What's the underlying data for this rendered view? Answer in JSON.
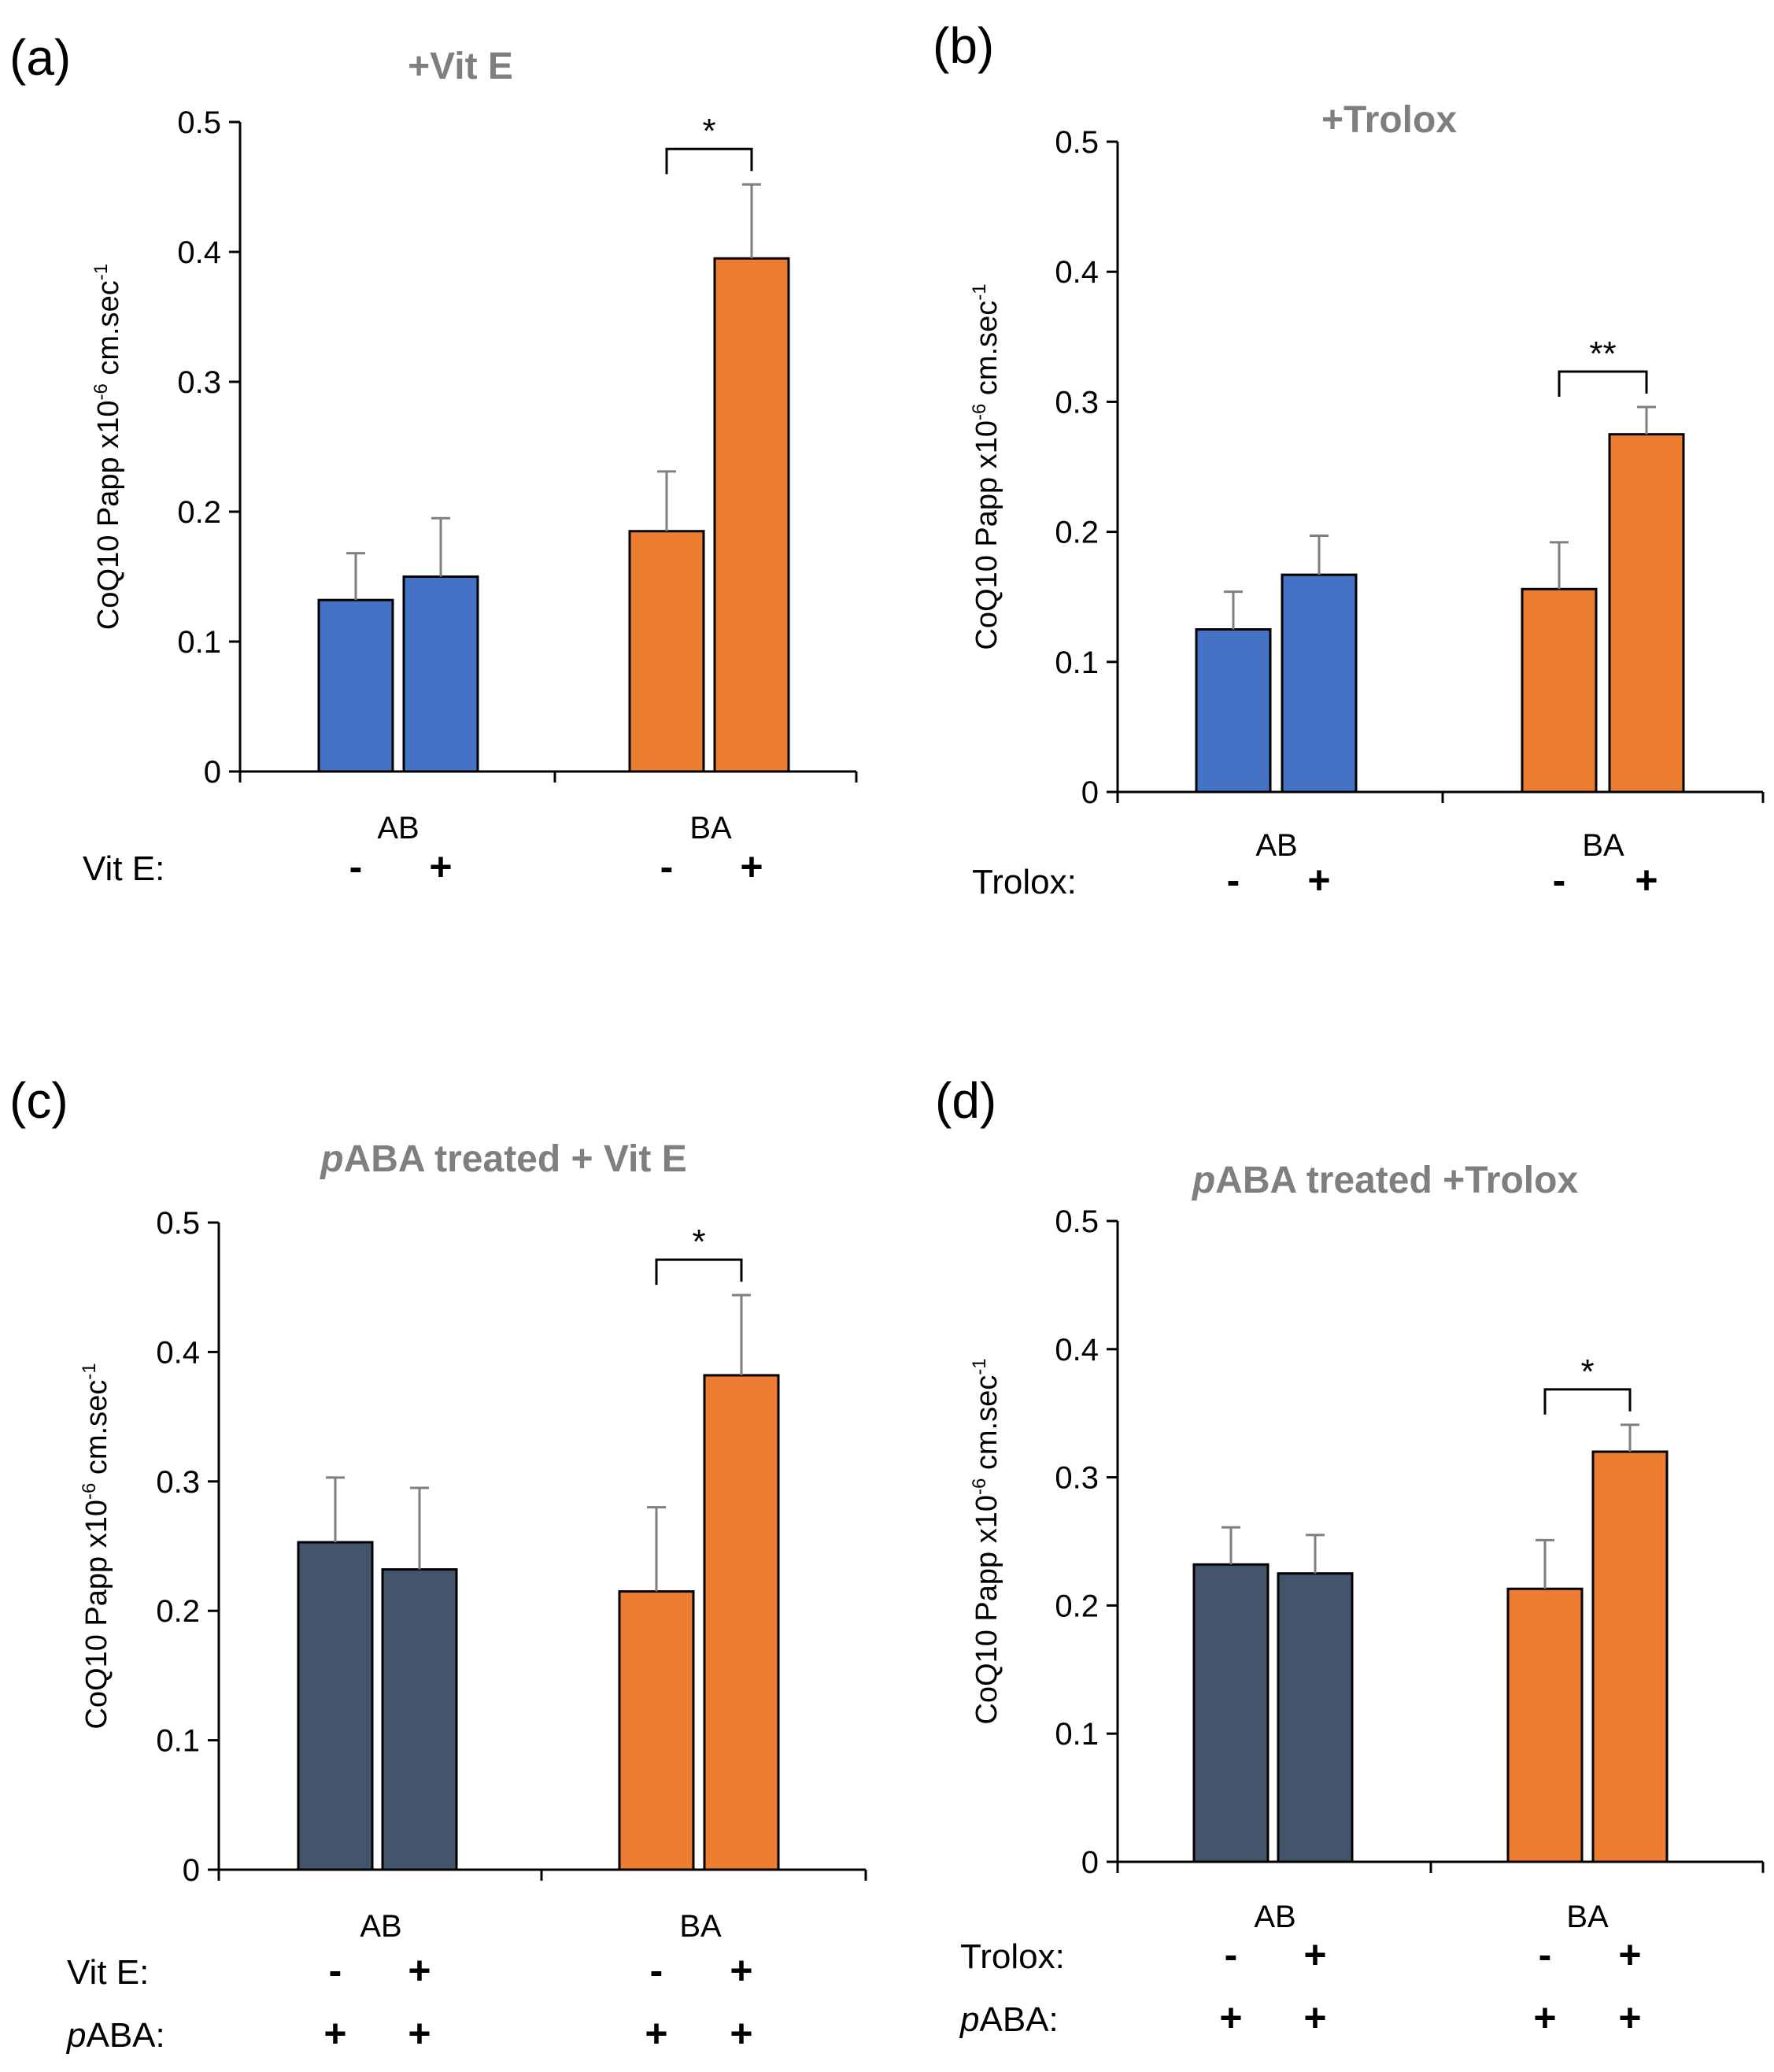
{
  "figure": {
    "type": "multi-panel bar chart",
    "panel_count": 4
  },
  "chart_data": [
    {
      "panel_label": "(a)",
      "type": "bar",
      "title": "+Vit E",
      "title_parts": [
        {
          "text": "+Vit E",
          "italic": false
        }
      ],
      "ylabel": "CoQ10 Papp x10",
      "ylabel_exp": "-6",
      "ylabel_unit": " cm.sec",
      "ylabel_unit_exp": "-1",
      "ylim": [
        0,
        0.5
      ],
      "yticks": [
        0,
        0.1,
        0.2,
        0.3,
        0.4,
        0.5
      ],
      "ytick_labels": [
        "0",
        "0.1",
        "0.2",
        "0.3",
        "0.4",
        "0.5"
      ],
      "categories": [
        "AB",
        "BA"
      ],
      "bars": [
        {
          "group": "AB",
          "treatment": "-",
          "value": 0.132,
          "error": 0.036,
          "color": "#4472C4"
        },
        {
          "group": "AB",
          "treatment": "+",
          "value": 0.15,
          "error": 0.045,
          "color": "#4472C4"
        },
        {
          "group": "BA",
          "treatment": "-",
          "value": 0.185,
          "error": 0.046,
          "color": "#ED7D31"
        },
        {
          "group": "BA",
          "treatment": "+",
          "value": 0.395,
          "error": 0.057,
          "color": "#ED7D31"
        }
      ],
      "significance": [
        {
          "group": "BA",
          "label": "*"
        }
      ],
      "condition_rows": [
        {
          "label": "Vit E:",
          "values": [
            "-",
            "+",
            "-",
            "+"
          ],
          "label_italic_prefix": ""
        }
      ]
    },
    {
      "panel_label": "(b)",
      "type": "bar",
      "title": "+Trolox",
      "title_parts": [
        {
          "text": "+Trolox",
          "italic": false
        }
      ],
      "ylabel": "CoQ10 Papp x10",
      "ylabel_exp": "-6",
      "ylabel_unit": " cm.sec",
      "ylabel_unit_exp": "-1",
      "ylim": [
        0,
        0.5
      ],
      "yticks": [
        0,
        0.1,
        0.2,
        0.3,
        0.4,
        0.5
      ],
      "ytick_labels": [
        "0",
        "0.1",
        "0.2",
        "0.3",
        "0.4",
        "0.5"
      ],
      "categories": [
        "AB",
        "BA"
      ],
      "bars": [
        {
          "group": "AB",
          "treatment": "-",
          "value": 0.125,
          "error": 0.029,
          "color": "#4472C4"
        },
        {
          "group": "AB",
          "treatment": "+",
          "value": 0.167,
          "error": 0.03,
          "color": "#4472C4"
        },
        {
          "group": "BA",
          "treatment": "-",
          "value": 0.156,
          "error": 0.036,
          "color": "#ED7D31"
        },
        {
          "group": "BA",
          "treatment": "+",
          "value": 0.275,
          "error": 0.021,
          "color": "#ED7D31"
        }
      ],
      "significance": [
        {
          "group": "BA",
          "label": "**"
        }
      ],
      "condition_rows": [
        {
          "label": "Trolox:",
          "values": [
            "-",
            "+",
            "-",
            "+"
          ],
          "label_italic_prefix": ""
        }
      ]
    },
    {
      "panel_label": "(c)",
      "type": "bar",
      "title": "pABA treated + Vit E",
      "title_parts": [
        {
          "text": "p",
          "italic": true
        },
        {
          "text": "ABA treated + Vit E",
          "italic": false
        }
      ],
      "ylabel": "CoQ10 Papp x10",
      "ylabel_exp": "-6",
      "ylabel_unit": " cm.sec",
      "ylabel_unit_exp": "-1",
      "ylim": [
        0,
        0.5
      ],
      "yticks": [
        0,
        0.1,
        0.2,
        0.3,
        0.4,
        0.5
      ],
      "ytick_labels": [
        "0",
        "0.1",
        "0.2",
        "0.3",
        "0.4",
        "0.5"
      ],
      "categories": [
        "AB",
        "BA"
      ],
      "bars": [
        {
          "group": "AB",
          "treatment": "-",
          "value": 0.253,
          "error": 0.05,
          "color": "#44546A"
        },
        {
          "group": "AB",
          "treatment": "+",
          "value": 0.232,
          "error": 0.063,
          "color": "#44546A"
        },
        {
          "group": "BA",
          "treatment": "-",
          "value": 0.215,
          "error": 0.065,
          "color": "#ED7D31"
        },
        {
          "group": "BA",
          "treatment": "+",
          "value": 0.382,
          "error": 0.062,
          "color": "#ED7D31"
        }
      ],
      "significance": [
        {
          "group": "BA",
          "label": "*"
        }
      ],
      "condition_rows": [
        {
          "label": "Vit E:",
          "values": [
            "-",
            "+",
            "-",
            "+"
          ],
          "label_italic_prefix": ""
        },
        {
          "label": "ABA:",
          "values": [
            "+",
            "+",
            "+",
            "+"
          ],
          "label_italic_prefix": "p"
        }
      ]
    },
    {
      "panel_label": "(d)",
      "type": "bar",
      "title": "pABA treated +Trolox",
      "title_parts": [
        {
          "text": "p",
          "italic": true
        },
        {
          "text": "ABA treated +Trolox",
          "italic": false
        }
      ],
      "ylabel": "CoQ10 Papp x10",
      "ylabel_exp": "-6",
      "ylabel_unit": " cm.sec",
      "ylabel_unit_exp": "-1",
      "ylim": [
        0,
        0.5
      ],
      "yticks": [
        0,
        0.1,
        0.2,
        0.3,
        0.4,
        0.5
      ],
      "ytick_labels": [
        "0",
        "0.1",
        "0.2",
        "0.3",
        "0.4",
        "0.5"
      ],
      "categories": [
        "AB",
        "BA"
      ],
      "bars": [
        {
          "group": "AB",
          "treatment": "-",
          "value": 0.232,
          "error": 0.029,
          "color": "#44546A"
        },
        {
          "group": "AB",
          "treatment": "+",
          "value": 0.225,
          "error": 0.03,
          "color": "#44546A"
        },
        {
          "group": "BA",
          "treatment": "-",
          "value": 0.213,
          "error": 0.038,
          "color": "#ED7D31"
        },
        {
          "group": "BA",
          "treatment": "+",
          "value": 0.32,
          "error": 0.021,
          "color": "#ED7D31"
        }
      ],
      "significance": [
        {
          "group": "BA",
          "label": "*"
        }
      ],
      "condition_rows": [
        {
          "label": "Trolox:",
          "values": [
            "-",
            "+",
            "-",
            "+"
          ],
          "label_italic_prefix": ""
        },
        {
          "label": "ABA:",
          "values": [
            "+",
            "+",
            "+",
            "+"
          ],
          "label_italic_prefix": "p"
        }
      ]
    }
  ],
  "colors": {
    "axis": "#000000",
    "error_bar": "#7F7F7F",
    "title": "#7F7F7F",
    "text": "#000000"
  }
}
